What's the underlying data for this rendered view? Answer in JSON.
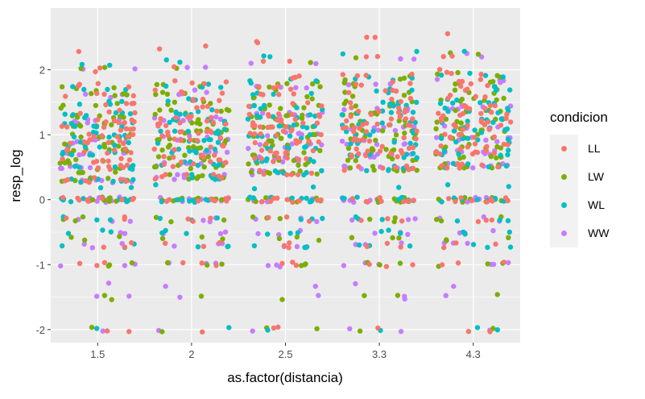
{
  "chart_data": {
    "type": "scatter",
    "geom": "jitter",
    "xlabel": "as.factor(distancia)",
    "ylabel": "resp_log",
    "categories": [
      "1.5",
      "2",
      "2.5",
      "3.3",
      "4.3"
    ],
    "yticks": [
      -2,
      -1,
      0,
      1,
      2
    ],
    "ylim": [
      -2.2,
      2.95
    ],
    "grid": true,
    "background": "#EBEBEB",
    "legend": {
      "title": "condicion",
      "position": "right",
      "entries": [
        "LL",
        "LW",
        "WL",
        "WW"
      ]
    },
    "series": [
      {
        "name": "LL",
        "color": "#F8766D",
        "levels": [
          2.3,
          2.0,
          1.75,
          1.6,
          1.5,
          1.35,
          1.2,
          1.1,
          1.0,
          0.9,
          0.75,
          0.6,
          0.5,
          0.3,
          0.0,
          -0.3,
          -0.7,
          -1.0,
          -2.0
        ]
      },
      {
        "name": "LW",
        "color": "#7CAE00",
        "levels": [
          2.0,
          1.7,
          1.6,
          1.45,
          1.3,
          1.15,
          1.0,
          0.85,
          0.75,
          0.6,
          0.45,
          0.3,
          0.0,
          -0.3,
          -0.6,
          -1.0,
          -1.5,
          -2.0
        ]
      },
      {
        "name": "WL",
        "color": "#00BFC4",
        "levels": [
          2.1,
          1.7,
          1.5,
          1.3,
          1.15,
          1.0,
          0.85,
          0.7,
          0.5,
          0.3,
          0.2,
          0.0,
          -0.3,
          -0.5,
          -0.7,
          -2.0
        ]
      },
      {
        "name": "WW",
        "color": "#C77CFF",
        "levels": [
          2.0,
          1.6,
          1.2,
          0.9,
          0.7,
          0.5,
          0.3,
          0.0,
          -0.3,
          -0.5,
          -0.7,
          -1.0,
          -1.3,
          -1.5,
          -2.0
        ]
      }
    ]
  }
}
